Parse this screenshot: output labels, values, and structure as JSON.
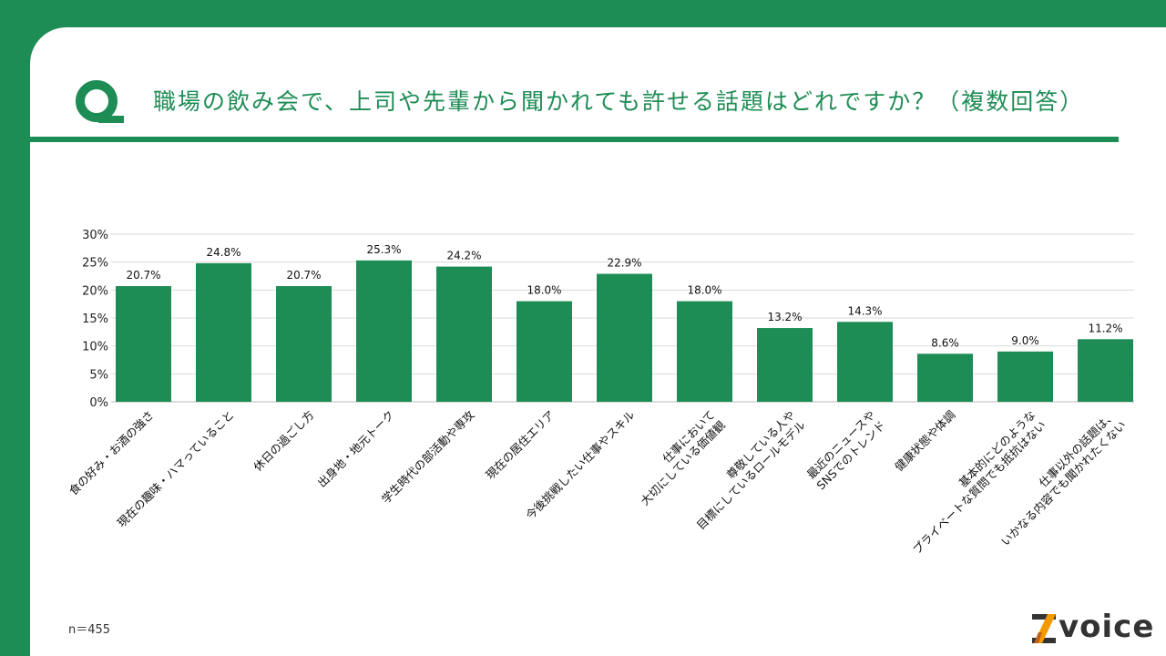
{
  "title": "職場の飲み会で、上司や先輩から聞かれても許せる話題はどれですか？（複数回答）",
  "q_icon": "Q",
  "note": "n＝455",
  "logo_text": "voice",
  "colors": {
    "brand": "#1e8c55",
    "bar": "#1e8c55"
  },
  "chart_data": {
    "type": "bar",
    "categories": [
      "食の好み・お酒の強さ",
      "現在の趣味・ハマっていること",
      "休日の過ごし方",
      "出身地・地元トーク",
      "学生時代の部活動や専攻",
      "現在の居住エリア",
      "今後挑戦したい仕事やスキル",
      "仕事において\n大切にしている価値観",
      "尊敬している人や\n目標にしているロールモデル",
      "最近のニュースや\nSNSでのトレンド",
      "健康状態や体調",
      "基本的にどのような\nプライベートな質問でも抵抗はない",
      "仕事以外の話題は、\nいかなる内容でも聞かれたくない"
    ],
    "values": [
      20.7,
      24.8,
      20.7,
      25.3,
      24.2,
      18.0,
      22.9,
      18.0,
      13.2,
      14.3,
      8.6,
      9.0,
      11.2
    ],
    "data_labels": [
      "20.7%",
      "24.8%",
      "20.7%",
      "25.3%",
      "24.2%",
      "18.0%",
      "22.9%",
      "18.0%",
      "13.2%",
      "14.3%",
      "8.6%",
      "9.0%",
      "11.2%"
    ],
    "yticks": [
      "0%",
      "5%",
      "10%",
      "15%",
      "20%",
      "25%",
      "30%"
    ],
    "ylim": [
      0,
      30
    ],
    "grid": true
  }
}
